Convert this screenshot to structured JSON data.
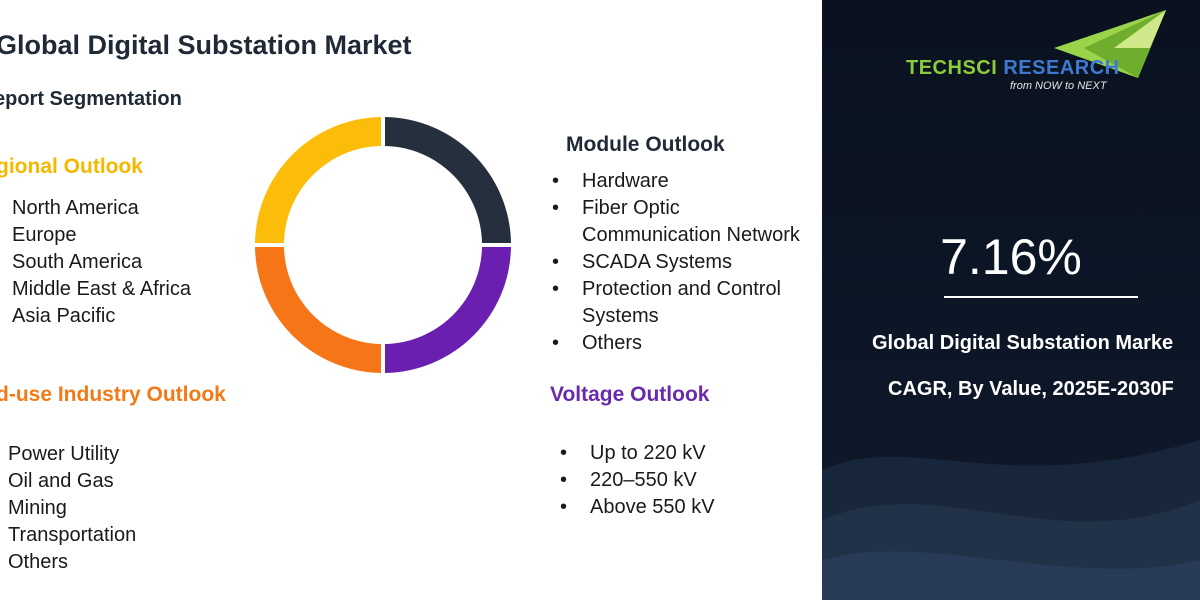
{
  "title": "Global Digital Substation Market",
  "subtitle": "eport Segmentation",
  "regional": {
    "heading": "gional Outlook",
    "items": [
      "North America",
      "Europe",
      "South America",
      "Middle East & Africa",
      "Asia Pacific"
    ]
  },
  "enduse": {
    "heading": "d-use Industry Outlook",
    "items": [
      "Power Utility",
      "Oil and Gas",
      "Mining",
      "Transportation",
      "Others"
    ]
  },
  "module": {
    "heading": "Module Outlook",
    "items": [
      "Hardware",
      "Fiber Optic",
      "Communication Network",
      "SCADA Systems",
      "Protection and Control",
      "Systems",
      "Others"
    ]
  },
  "voltage": {
    "heading": "Voltage Outlook",
    "items": [
      "Up to 220 kV",
      "220–550 kV",
      "Above 550 kV"
    ]
  },
  "donut": {
    "colors": [
      "#262f3d",
      "#6a1fb0",
      "#f67617",
      "#fbbd0a"
    ],
    "segment_order": [
      "top-right",
      "bottom-right",
      "bottom-left",
      "top-left"
    ]
  },
  "brand": {
    "logo_tech": "TECHSCI",
    "logo_research": " RESEARCH",
    "tagline": "from NOW to NEXT",
    "logo_green": "#8ccc3b",
    "logo_blue": "#3f7ad0"
  },
  "stats": {
    "cagr": "7.16%",
    "line1": "Global Digital Substation Marke",
    "line2": "CAGR, By Value, 2025E-2030F"
  },
  "bullet_glyph": "•"
}
